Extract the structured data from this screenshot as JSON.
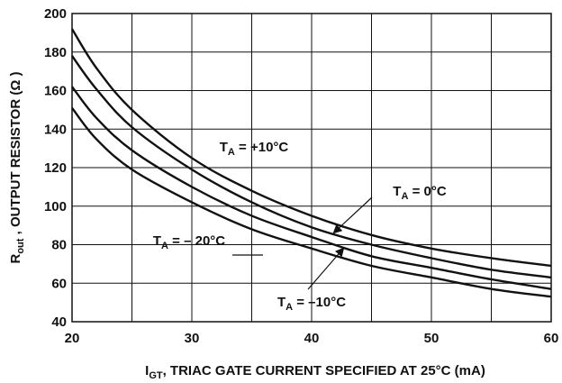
{
  "chart_data": {
    "type": "line",
    "x_axis": {
      "label_main": "I",
      "label_sub": "GT",
      "label_rest": ", TRIAC GATE CURRENT SPECIFIED AT 25°C (mA)",
      "range": [
        20,
        60
      ],
      "ticks": [
        20,
        30,
        40,
        50,
        60
      ]
    },
    "y_axis": {
      "label_main": "R",
      "label_sub": "out",
      "label_rest": " , OUTPUT RESISTOR (Ω )",
      "range": [
        40,
        200
      ],
      "ticks": [
        40,
        60,
        80,
        100,
        120,
        140,
        160,
        180,
        200
      ]
    },
    "grid": true,
    "series": [
      {
        "name": "T_A = +10°C",
        "x": [
          20,
          22,
          25,
          30,
          35,
          40,
          45,
          50,
          55,
          60
        ],
        "y": [
          192,
          172,
          150,
          125,
          108,
          95,
          85,
          78,
          73,
          69
        ]
      },
      {
        "name": "T_A = 0°C",
        "x": [
          20,
          22,
          25,
          30,
          35,
          40,
          45,
          50,
          55,
          60
        ],
        "y": [
          178,
          161,
          141,
          119,
          102,
          89,
          80,
          73,
          67,
          63
        ]
      },
      {
        "name": "T_A = -10°C",
        "x": [
          20,
          22,
          25,
          30,
          35,
          40,
          45,
          50,
          55,
          60
        ],
        "y": [
          162,
          146,
          129,
          110,
          95,
          84,
          74,
          68,
          62,
          57
        ]
      },
      {
        "name": "T_A = -20°C",
        "x": [
          20,
          22,
          25,
          30,
          35,
          40,
          45,
          50,
          55,
          60
        ],
        "y": [
          151,
          135,
          119,
          102,
          88,
          78,
          69,
          63,
          57,
          53
        ]
      }
    ],
    "annotations": [
      {
        "sym": "T",
        "sub": "A",
        "value": " = +10°C"
      },
      {
        "sym": "T",
        "sub": "A",
        "value": " = 0°C"
      },
      {
        "sym": "T",
        "sub": "A",
        "value": " = – 20°C"
      },
      {
        "sym": "T",
        "sub": "A",
        "value": " = –10°C"
      }
    ]
  }
}
